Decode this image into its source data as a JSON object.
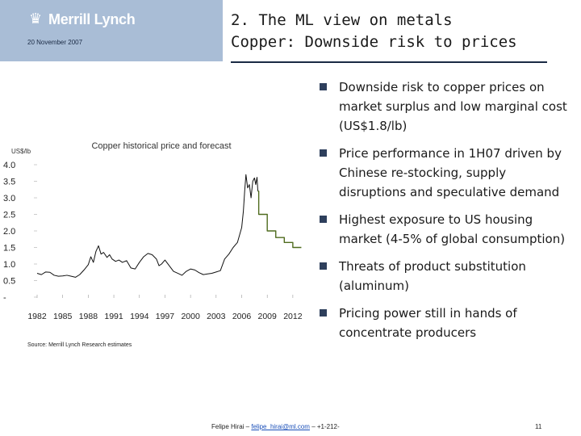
{
  "header": {
    "logo_text": "Merrill Lynch",
    "date": "20 November 2007",
    "title_line1": "2. The ML view on metals",
    "title_line2": "Copper: Downside risk to prices"
  },
  "bullets": [
    "Downside risk to copper prices on market surplus and low marginal cost (US$1.8/lb)",
    "Price performance in 1H07 driven by Chinese re-stocking, supply disruptions and speculative demand",
    "Highest exposure to US housing market (4-5% of global consumption)",
    "Threats of product substitution (aluminum)",
    "Pricing power still in hands of concentrate producers"
  ],
  "source": "Source: Merrill Lynch Research estimates",
  "footer": {
    "prefix": "Felipe Hirai –",
    "email": "felipe_hirai@ml.com",
    "suffix": "– +1-212-",
    "page": "11"
  },
  "colors": {
    "logo_bg": "#a9bdd6",
    "history_line": "#111111",
    "forecast_line": "#4f6b1e",
    "bullet": "#2e3f5c"
  },
  "chart_data": {
    "type": "line",
    "title": "Copper historical price and forecast",
    "ylabel": "US$/lb",
    "ylim": [
      0,
      4.0
    ],
    "xlim": [
      1982,
      2014
    ],
    "y_ticks": [
      "-",
      "0.5",
      "1.0",
      "1.5",
      "2.0",
      "2.5",
      "3.0",
      "3.5",
      "4.0"
    ],
    "y_tick_values": [
      0,
      0.5,
      1.0,
      1.5,
      2.0,
      2.5,
      3.0,
      3.5,
      4.0
    ],
    "x_ticks": [
      "1982",
      "1985",
      "1988",
      "1991",
      "1994",
      "1997",
      "2000",
      "2003",
      "2006",
      "2009",
      "2012"
    ],
    "x_tick_values": [
      1982,
      1985,
      1988,
      1991,
      1994,
      1997,
      2000,
      2003,
      2006,
      2009,
      2012
    ],
    "grid": false,
    "series": [
      {
        "name": "",
        "x": [
          1982.0,
          1982.5,
          1983.0,
          1983.5,
          1984.0,
          1984.5,
          1985.0,
          1985.5,
          1986.0,
          1986.5,
          1987.0,
          1987.5,
          1988.0,
          1988.3,
          1988.6,
          1988.9,
          1989.2,
          1989.5,
          1989.8,
          1990.2,
          1990.5,
          1990.8,
          1991.2,
          1991.6,
          1992.0,
          1992.5,
          1993.0,
          1993.5,
          1994.0,
          1994.5,
          1995.0,
          1995.5,
          1996.0,
          1996.3,
          1996.6,
          1997.0,
          1997.5,
          1998.0,
          1998.5,
          1999.0,
          1999.5,
          2000.0,
          2000.5,
          2001.0,
          2001.5,
          2002.0,
          2002.5,
          2003.0,
          2003.5,
          2004.0,
          2004.5,
          2005.0,
          2005.5,
          2006.0,
          2006.2,
          2006.35,
          2006.5,
          2006.7,
          2006.9,
          2007.1,
          2007.3,
          2007.5,
          2007.65,
          2007.8,
          2007.9
        ],
        "y": [
          0.72,
          0.68,
          0.76,
          0.75,
          0.66,
          0.63,
          0.64,
          0.66,
          0.63,
          0.6,
          0.68,
          0.82,
          0.98,
          1.22,
          1.05,
          1.38,
          1.55,
          1.3,
          1.35,
          1.2,
          1.28,
          1.15,
          1.08,
          1.12,
          1.05,
          1.1,
          0.88,
          0.85,
          1.05,
          1.22,
          1.32,
          1.28,
          1.15,
          0.95,
          1.0,
          1.12,
          0.95,
          0.78,
          0.72,
          0.66,
          0.78,
          0.85,
          0.82,
          0.74,
          0.68,
          0.7,
          0.72,
          0.76,
          0.8,
          1.15,
          1.3,
          1.5,
          1.65,
          2.1,
          2.6,
          3.2,
          3.7,
          3.3,
          3.4,
          3.0,
          3.5,
          3.6,
          3.4,
          3.62,
          3.2
        ],
        "style": "solid"
      },
      {
        "name": "",
        "x": [
          2007.9,
          2008.0,
          2008.0,
          2009.0,
          2009.0,
          2010.0,
          2010.0,
          2011.0,
          2011.0,
          2012.0,
          2012.0,
          2013.0
        ],
        "y": [
          3.2,
          3.2,
          2.5,
          2.5,
          2.0,
          2.0,
          1.8,
          1.8,
          1.65,
          1.65,
          1.5,
          1.5
        ],
        "style": "step"
      }
    ]
  }
}
